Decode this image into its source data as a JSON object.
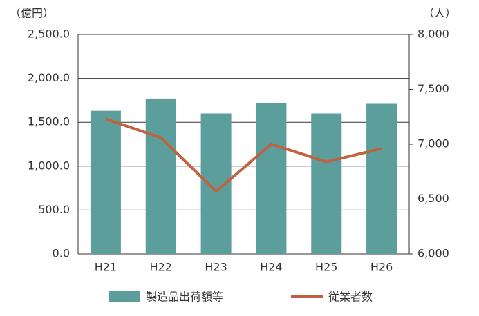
{
  "chart_data": {
    "type": "bar",
    "y_unit": "（億円）",
    "y2_unit": "（人）",
    "categories": [
      "H21",
      "H22",
      "H23",
      "H24",
      "H25",
      "H26"
    ],
    "series": [
      {
        "name": "製造品出荷額等",
        "type": "bar",
        "color": "#5b9e9c",
        "values": [
          1630,
          1770,
          1600,
          1720,
          1600,
          1710
        ]
      },
      {
        "name": "従業者数",
        "type": "line",
        "axis": "y2",
        "color": "#c0623f",
        "values": [
          7230,
          7060,
          6570,
          7000,
          6840,
          6960
        ]
      }
    ],
    "ylim": [
      0,
      2500
    ],
    "yticks": [
      {
        "value": 0,
        "label": "0.0"
      },
      {
        "value": 500,
        "label": "500.0"
      },
      {
        "value": 1000,
        "label": "1,000.0"
      },
      {
        "value": 1500,
        "label": "1,500.0"
      },
      {
        "value": 2000,
        "label": "2,000.0"
      },
      {
        "value": 2500,
        "label": "2,500.0"
      }
    ],
    "y2lim": [
      6000,
      8000
    ],
    "y2ticks": [
      {
        "value": 6000,
        "label": "6,000"
      },
      {
        "value": 6500,
        "label": "6,500"
      },
      {
        "value": 7000,
        "label": "7,000"
      },
      {
        "value": 7500,
        "label": "7,500"
      },
      {
        "value": 8000,
        "label": "8,000"
      }
    ],
    "grid": true,
    "legend": "bottom"
  }
}
